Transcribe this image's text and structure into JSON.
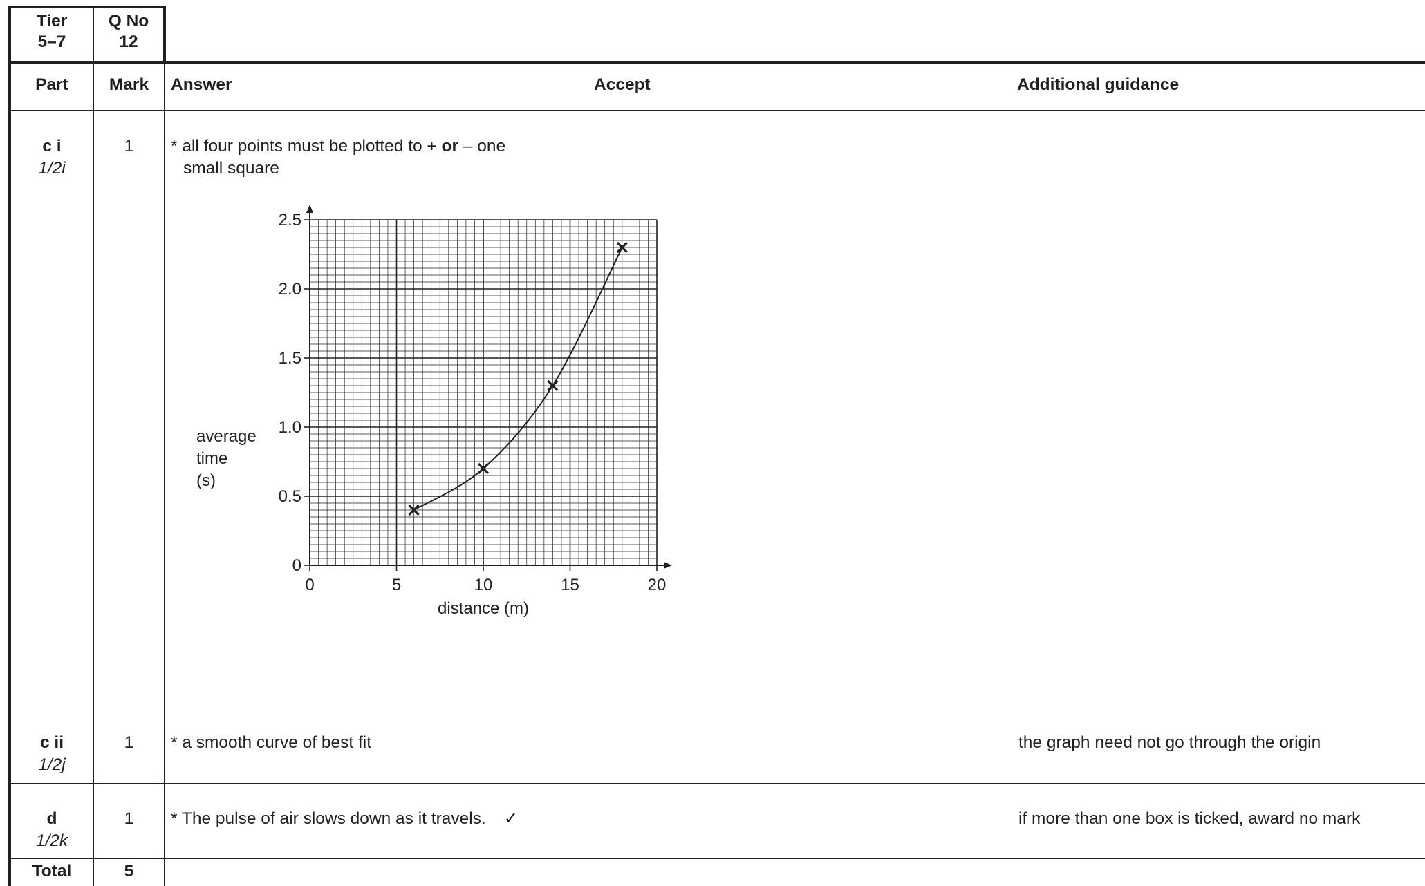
{
  "header": {
    "tier_label": "Tier",
    "tier_value": "5–7",
    "qno_label": "Q No",
    "qno_value": "12",
    "col_part": "Part",
    "col_mark": "Mark",
    "col_answer": "Answer",
    "col_accept": "Accept",
    "col_guidance": "Additional guidance"
  },
  "rows": [
    {
      "part": "c i",
      "ref": "1/2i",
      "mark": "1",
      "answer_prefix": "* all four points must be plotted to + ",
      "answer_bold": "or",
      "answer_suffix": " – one",
      "answer_line2": "small square",
      "guidance": ""
    },
    {
      "part": "c ii",
      "ref": "1/2j",
      "mark": "1",
      "answer": "* a smooth curve of best fit",
      "guidance": "the graph need not go through the origin"
    },
    {
      "part": "d",
      "ref": "1/2k",
      "mark": "1",
      "answer": "* The pulse of air slows down as it travels.",
      "tick": "✓",
      "guidance": "if more than one box is ticked, award no mark"
    }
  ],
  "total": {
    "label": "Total",
    "value": "5"
  },
  "chart_data": {
    "type": "scatter",
    "xlabel": "distance (m)",
    "ylabel_lines": [
      "average",
      "time",
      "(s)"
    ],
    "xlim": [
      0,
      20
    ],
    "ylim": [
      0,
      2.5
    ],
    "xticks": [
      "0",
      "5",
      "10",
      "15",
      "20"
    ],
    "yticks": [
      "0",
      "0.5",
      "1.0",
      "1.5",
      "2.0",
      "2.5"
    ],
    "grid": true,
    "points": [
      {
        "x": 6,
        "y": 0.4
      },
      {
        "x": 10,
        "y": 0.7
      },
      {
        "x": 14,
        "y": 1.3
      },
      {
        "x": 18,
        "y": 2.3
      }
    ],
    "curve": "smooth curve of best fit through points"
  }
}
